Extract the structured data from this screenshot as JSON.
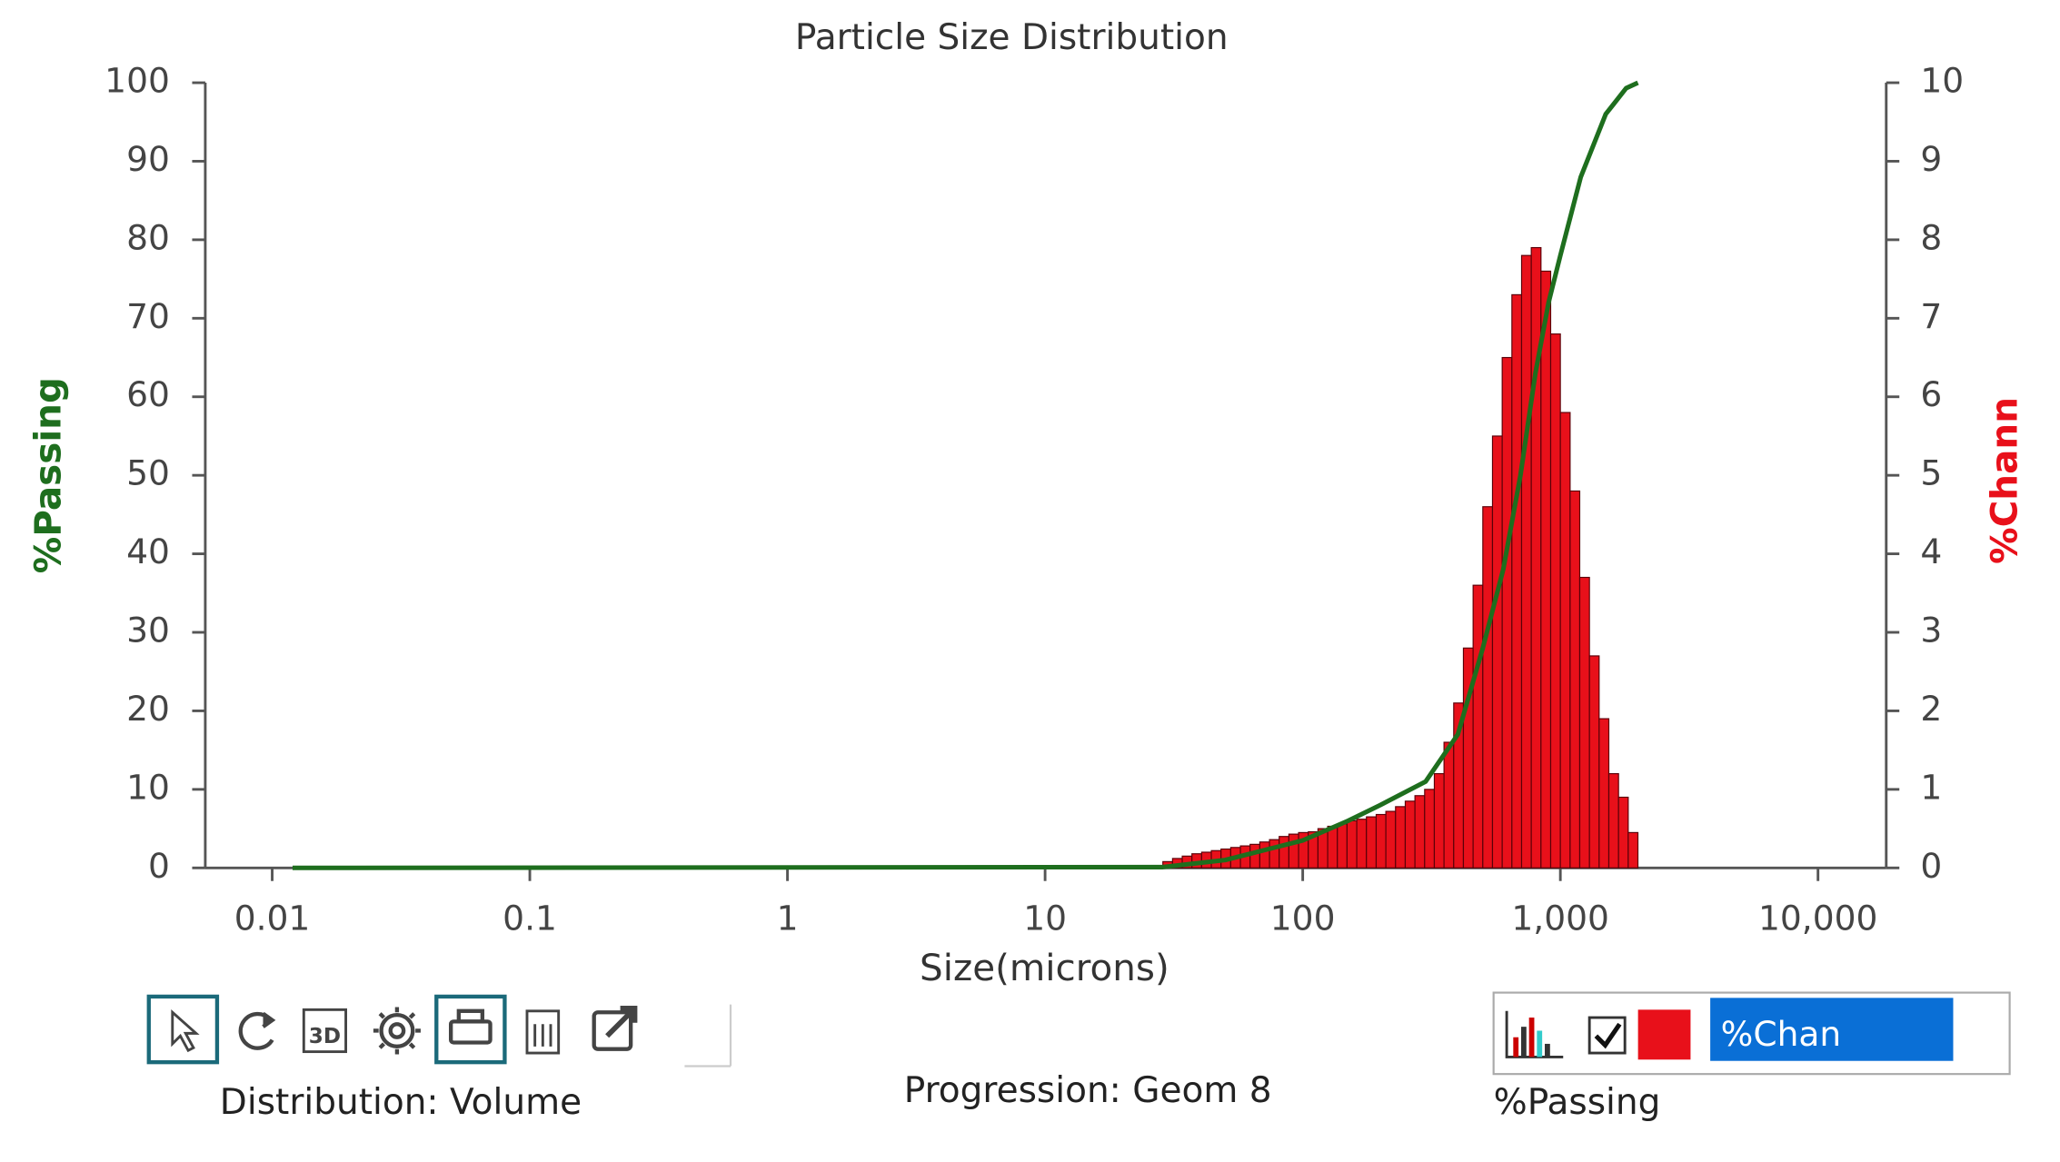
{
  "chart_data": {
    "type": "histogram",
    "title": "Particle Size Distribution",
    "xlabel": "Size(microns)",
    "ylabel": "%Passing",
    "y2label": "%Chann",
    "xlog": true,
    "xlim": [
      0.0055,
      18400
    ],
    "xticks": [
      0.01,
      0.1,
      1,
      10,
      100,
      {
        "value": 1000,
        "label": "1,000"
      },
      {
        "value": 10000,
        "label": "10,000"
      }
    ],
    "ylim": [
      0,
      100
    ],
    "yticks": [
      0,
      10,
      20,
      30,
      40,
      50,
      60,
      70,
      80,
      90,
      100
    ],
    "y2lim": [
      0,
      10
    ],
    "y2ticks": [
      0,
      1,
      2,
      3,
      4,
      5,
      6,
      7,
      8,
      9,
      10
    ],
    "bins": [
      28.65,
      31.24,
      34.07,
      37.15,
      40.51,
      44.18,
      48.18,
      52.54,
      57.3,
      62.48,
      68.14,
      74.3,
      81.03,
      88.36,
      96.36,
      105.1,
      114.6,
      125,
      136.3,
      148.6,
      162.1,
      176.7,
      192.8,
      210.2,
      229.2,
      250,
      272.6,
      297.3,
      324.2,
      353.5,
      385.5,
      420.4,
      458.5,
      500,
      545.2,
      594.6,
      648.4,
      707.1,
      771.1,
      840.9,
      917,
      1000,
      1091,
      1189,
      1297,
      1414,
      1542,
      1682,
      1834,
      2000
    ],
    "series": [
      {
        "name": "%Chan",
        "color": "#e8101a",
        "axis": "y2",
        "values": [
          0.08,
          0.12,
          0.15,
          0.18,
          0.2,
          0.22,
          0.24,
          0.26,
          0.28,
          0.3,
          0.33,
          0.36,
          0.4,
          0.43,
          0.45,
          0.46,
          0.5,
          0.53,
          0.56,
          0.6,
          0.62,
          0.65,
          0.68,
          0.72,
          0.78,
          0.85,
          0.92,
          1.0,
          1.2,
          1.6,
          2.1,
          2.8,
          3.6,
          4.6,
          5.5,
          6.5,
          7.3,
          7.8,
          7.9,
          7.6,
          6.8,
          5.8,
          4.8,
          3.7,
          2.7,
          1.9,
          1.2,
          0.9,
          0.45
        ]
      },
      {
        "name": "%Passing",
        "color": "#1e6e1e",
        "type": "line",
        "x": [
          0.012,
          28.65,
          50,
          100,
          150,
          200,
          300,
          400,
          500,
          600,
          700,
          800,
          900,
          1000,
          1200,
          1500,
          1800,
          2000
        ],
        "values": [
          0,
          0.1,
          1,
          3.5,
          6,
          8,
          11,
          17,
          28,
          38,
          50,
          63,
          72,
          78,
          88,
          96,
          99.3,
          100
        ]
      }
    ]
  },
  "footer": {
    "distribution": "Distribution: Volume",
    "progression": "Progression: Geom 8"
  }
}
